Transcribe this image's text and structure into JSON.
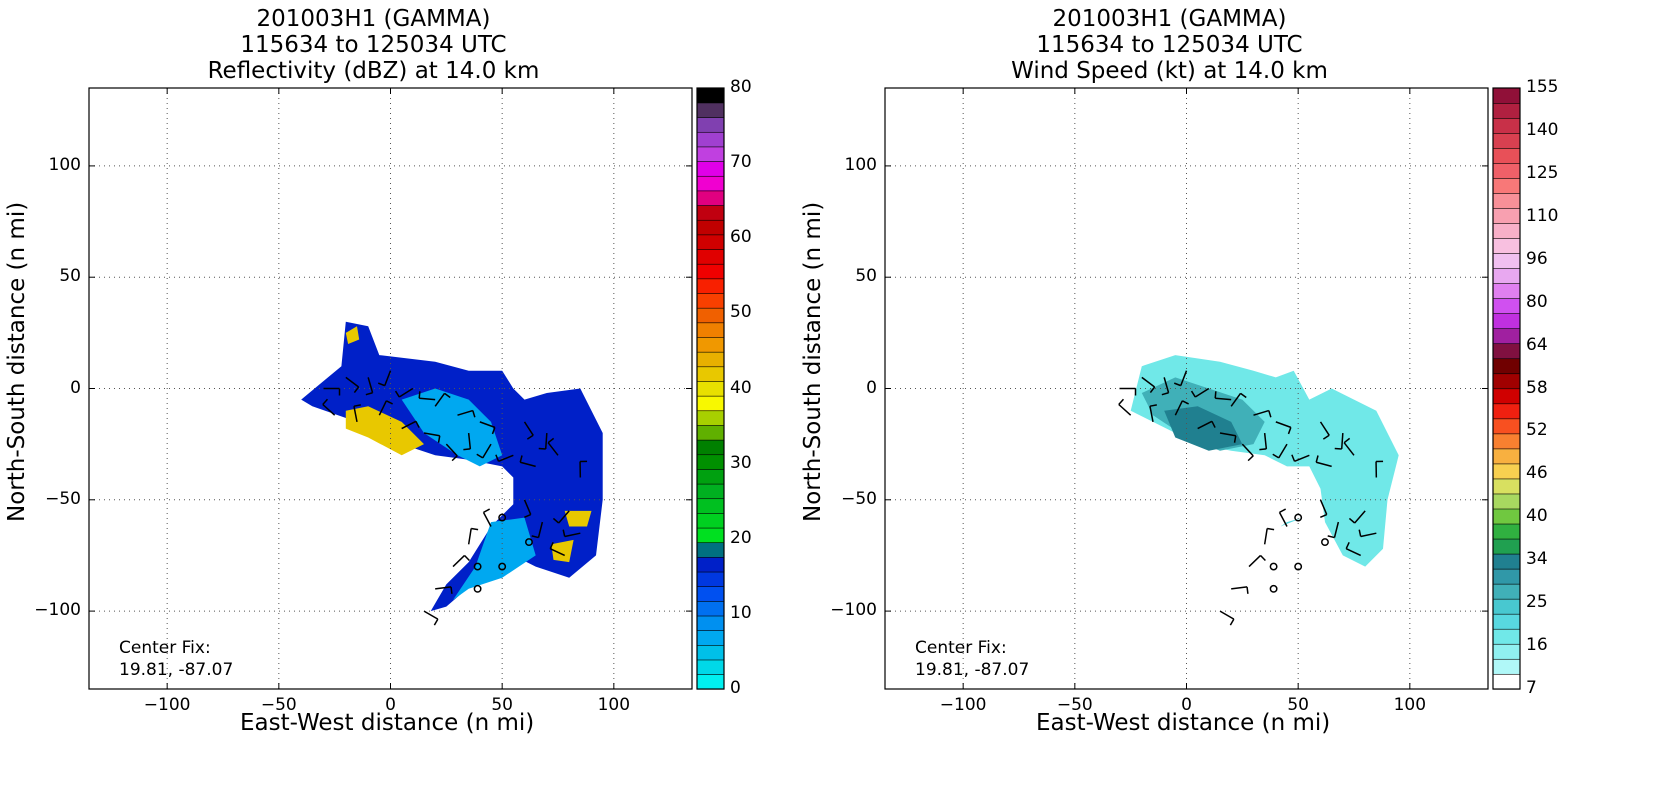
{
  "panels": [
    {
      "id": "reflectivity",
      "title_lines": [
        "201003H1 (GAMMA)",
        "115634 to 125034 UTC",
        "Reflectivity (dBZ) at 14.0 km"
      ],
      "xlabel": "East-West distance (n mi)",
      "ylabel": "North-South distance (n mi)",
      "x_ticks": [
        "−100",
        "−50",
        "0",
        "50",
        "100"
      ],
      "y_ticks": [
        "100",
        "50",
        "0",
        "−50",
        "−100"
      ],
      "center_fix_label": "Center Fix:",
      "center_fix_value": "19.81, -87.07",
      "colorbar_ticks": [
        "80",
        "70",
        "60",
        "50",
        "40",
        "30",
        "20",
        "10",
        "0"
      ],
      "colorbar_colors": [
        "#00f0f0",
        "#00d8e8",
        "#00c0e8",
        "#00a8f0",
        "#0090f0",
        "#0070f0",
        "#0050f0",
        "#0038e0",
        "#0020c8",
        "#007080",
        "#00e020",
        "#00d020",
        "#00c020",
        "#00b020",
        "#00a010",
        "#009000",
        "#008000",
        "#60b000",
        "#a8d000",
        "#f8f800",
        "#e8e000",
        "#e8c800",
        "#e8b000",
        "#f09800",
        "#f08000",
        "#f06000",
        "#f84000",
        "#f82000",
        "#f00000",
        "#e00000",
        "#d00000",
        "#c00000",
        "#c00010",
        "#e00080",
        "#f000d0",
        "#e000e8",
        "#c040e0",
        "#a040d0",
        "#8040b0",
        "#503060",
        "#000000"
      ]
    },
    {
      "id": "windspeed",
      "title_lines": [
        "201003H1 (GAMMA)",
        "115634 to 125034 UTC",
        "Wind Speed (kt) at 14.0 km"
      ],
      "xlabel": "East-West distance (n mi)",
      "ylabel": "North-South distance (n mi)",
      "x_ticks": [
        "−100",
        "−50",
        "0",
        "50",
        "100"
      ],
      "y_ticks": [
        "100",
        "50",
        "0",
        "−50",
        "−100"
      ],
      "center_fix_label": "Center Fix:",
      "center_fix_value": "19.81, -87.07",
      "colorbar_ticks": [
        "155",
        "140",
        "125",
        "110",
        "96",
        "80",
        "64",
        "58",
        "52",
        "46",
        "40",
        "34",
        "25",
        "16",
        "7"
      ],
      "colorbar_colors": [
        "#ffffff",
        "#b0f8f8",
        "#90f0f0",
        "#70e8e8",
        "#58d8e0",
        "#48c8d0",
        "#40b0b8",
        "#3098a8",
        "#208090",
        "#20a050",
        "#30b040",
        "#70c840",
        "#a8d860",
        "#d8e060",
        "#f8d050",
        "#f8b040",
        "#f88030",
        "#f85020",
        "#f02010",
        "#d00000",
        "#a00000",
        "#700000",
        "#801040",
        "#a020a0",
        "#c030e0",
        "#d050f0",
        "#e080f0",
        "#e8a8f0",
        "#f0c0f0",
        "#f8c0e0",
        "#f8b0c8",
        "#f8a0b0",
        "#f89098",
        "#f87878",
        "#f06068",
        "#e85058",
        "#d84050",
        "#c83048",
        "#b02040",
        "#901038"
      ]
    }
  ],
  "chart_data": [
    {
      "type": "heatmap",
      "title": "201003H1 (GAMMA) 115634 to 125034 UTC Reflectivity (dBZ) at 14.0 km",
      "xlabel": "East-West distance (n mi)",
      "ylabel": "North-South distance (n mi)",
      "xlim": [
        -135,
        135
      ],
      "ylim": [
        -135,
        135
      ],
      "grid": true,
      "colorbar": {
        "label": "dBZ",
        "range": [
          0,
          80
        ]
      },
      "regions": [
        {
          "name": "",
          "level": 8,
          "points": [
            [
              -40,
              -5
            ],
            [
              -22,
              10
            ],
            [
              -20,
              30
            ],
            [
              -10,
              28
            ],
            [
              -5,
              15
            ],
            [
              20,
              12
            ],
            [
              35,
              8
            ],
            [
              50,
              8
            ],
            [
              55,
              0
            ],
            [
              60,
              -5
            ],
            [
              70,
              -2
            ],
            [
              85,
              0
            ],
            [
              95,
              -20
            ],
            [
              95,
              -50
            ],
            [
              92,
              -75
            ],
            [
              80,
              -85
            ],
            [
              65,
              -80
            ],
            [
              55,
              -75
            ],
            [
              40,
              -85
            ],
            [
              25,
              -98
            ],
            [
              18,
              -100
            ],
            [
              25,
              -88
            ],
            [
              35,
              -78
            ],
            [
              45,
              -62
            ],
            [
              55,
              -52
            ],
            [
              55,
              -40
            ],
            [
              50,
              -35
            ],
            [
              35,
              -32
            ],
            [
              20,
              -30
            ],
            [
              5,
              -25
            ],
            [
              -15,
              -15
            ],
            [
              -35,
              -8
            ]
          ]
        },
        {
          "name": "",
          "level": 3,
          "points": [
            [
              5,
              -5
            ],
            [
              20,
              0
            ],
            [
              35,
              -5
            ],
            [
              45,
              -15
            ],
            [
              50,
              -30
            ],
            [
              40,
              -35
            ],
            [
              30,
              -30
            ],
            [
              15,
              -20
            ]
          ]
        },
        {
          "name": "",
          "level": 3,
          "points": [
            [
              45,
              -60
            ],
            [
              60,
              -58
            ],
            [
              65,
              -75
            ],
            [
              50,
              -85
            ],
            [
              35,
              -90
            ],
            [
              28,
              -95
            ],
            [
              38,
              -80
            ]
          ]
        },
        {
          "name": "",
          "level": 21,
          "points": [
            [
              -20,
              -10
            ],
            [
              -10,
              -8
            ],
            [
              5,
              -15
            ],
            [
              15,
              -25
            ],
            [
              5,
              -30
            ],
            [
              -10,
              -22
            ],
            [
              -20,
              -18
            ]
          ]
        },
        {
          "name": "",
          "level": 21,
          "points": [
            [
              -20,
              25
            ],
            [
              -15,
              28
            ],
            [
              -14,
              22
            ],
            [
              -19,
              20
            ]
          ]
        },
        {
          "name": "",
          "level": 21,
          "points": [
            [
              78,
              -55
            ],
            [
              90,
              -55
            ],
            [
              88,
              -62
            ],
            [
              80,
              -62
            ]
          ]
        },
        {
          "name": "",
          "level": 21,
          "points": [
            [
              72,
              -70
            ],
            [
              82,
              -68
            ],
            [
              80,
              -78
            ],
            [
              73,
              -77
            ]
          ]
        }
      ],
      "point_markers": [
        [
          50,
          -58
        ],
        [
          62,
          -69
        ],
        [
          39,
          -80
        ],
        [
          50,
          -80
        ],
        [
          39,
          -90
        ]
      ]
    },
    {
      "type": "heatmap",
      "title": "201003H1 (GAMMA) 115634 to 125034 UTC Wind Speed (kt) at 14.0 km",
      "xlabel": "East-West distance (n mi)",
      "ylabel": "North-South distance (n mi)",
      "xlim": [
        -135,
        135
      ],
      "ylim": [
        -135,
        135
      ],
      "grid": true,
      "colorbar": {
        "label": "kt",
        "range": [
          7,
          160
        ]
      },
      "regions": [
        {
          "name": "",
          "level": 3,
          "points": [
            [
              -25,
              -10
            ],
            [
              -20,
              10
            ],
            [
              -5,
              15
            ],
            [
              15,
              12
            ],
            [
              30,
              8
            ],
            [
              40,
              5
            ],
            [
              48,
              8
            ],
            [
              55,
              -5
            ],
            [
              65,
              0
            ],
            [
              75,
              -5
            ],
            [
              85,
              -10
            ],
            [
              95,
              -30
            ],
            [
              90,
              -50
            ],
            [
              88,
              -72
            ],
            [
              80,
              -80
            ],
            [
              70,
              -75
            ],
            [
              62,
              -60
            ],
            [
              60,
              -45
            ],
            [
              55,
              -35
            ],
            [
              45,
              -35
            ],
            [
              35,
              -30
            ],
            [
              20,
              -28
            ],
            [
              5,
              -25
            ],
            [
              -15,
              -15
            ]
          ]
        },
        {
          "name": "",
          "level": 6,
          "points": [
            [
              -20,
              -2
            ],
            [
              -5,
              5
            ],
            [
              10,
              0
            ],
            [
              25,
              -5
            ],
            [
              35,
              -15
            ],
            [
              30,
              -25
            ],
            [
              15,
              -28
            ],
            [
              0,
              -22
            ],
            [
              -15,
              -12
            ]
          ]
        },
        {
          "name": "",
          "level": 8,
          "points": [
            [
              -10,
              -10
            ],
            [
              5,
              -8
            ],
            [
              20,
              -15
            ],
            [
              25,
              -25
            ],
            [
              10,
              -28
            ],
            [
              -5,
              -22
            ]
          ]
        },
        {
          "name": "",
          "level": 4,
          "points": [
            [
              45,
              -60
            ],
            [
              52,
              -58
            ],
            [
              42,
              -62
            ]
          ]
        }
      ],
      "point_markers": [
        [
          50,
          -58
        ],
        [
          62,
          -69
        ],
        [
          39,
          -80
        ],
        [
          50,
          -80
        ],
        [
          39,
          -90
        ]
      ]
    }
  ]
}
